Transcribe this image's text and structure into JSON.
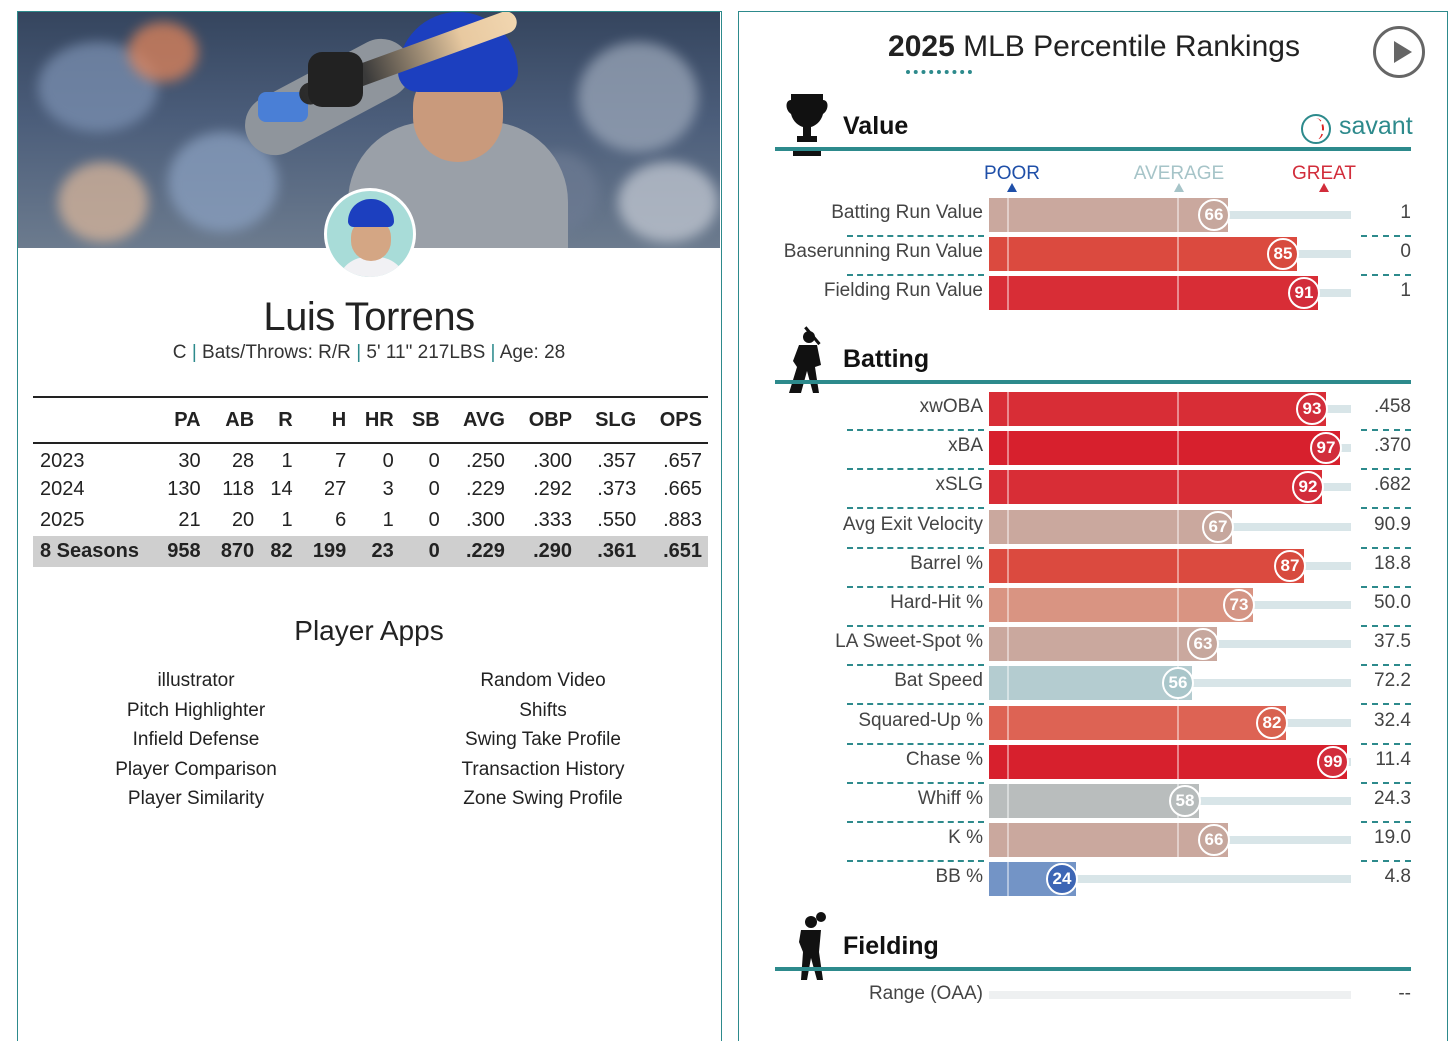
{
  "player": {
    "name": "Luis Torrens",
    "position": "C",
    "bats_throws": "Bats/Throws: R/R",
    "height_weight": "5' 11\" 217LBS",
    "age": "Age: 28",
    "separator": "|"
  },
  "stats": {
    "columns": [
      "",
      "PA",
      "AB",
      "R",
      "H",
      "HR",
      "SB",
      "AVG",
      "OBP",
      "SLG",
      "OPS"
    ],
    "rows": [
      [
        "2023",
        "30",
        "28",
        "1",
        "7",
        "0",
        "0",
        ".250",
        ".300",
        ".357",
        ".657"
      ],
      [
        "2024",
        "130",
        "118",
        "14",
        "27",
        "3",
        "0",
        ".229",
        ".292",
        ".373",
        ".665"
      ],
      [
        "2025",
        "21",
        "20",
        "1",
        "6",
        "1",
        "0",
        ".300",
        ".333",
        ".550",
        ".883"
      ],
      [
        "8 Seasons",
        "958",
        "870",
        "82",
        "199",
        "23",
        "0",
        ".229",
        ".290",
        ".361",
        ".651"
      ]
    ]
  },
  "apps": {
    "title": "Player Apps",
    "left": [
      "illustrator",
      "Pitch Highlighter",
      "Infield Defense",
      "Player Comparison",
      "Player Similarity"
    ],
    "right": [
      "Random Video",
      "Shifts",
      "Swing Take Profile",
      "Transaction History",
      "Zone Swing Profile"
    ]
  },
  "percentiles": {
    "title_year": "2025",
    "title_rest": "MLB Percentile Rankings",
    "brand": "savant",
    "legend": {
      "poor": "POOR",
      "average": "AVERAGE",
      "great": "GREAT"
    },
    "colors": {
      "accent": "#2d8a8c",
      "poor": "#1f4fa8",
      "average": "#a6c4c8",
      "great": "#d22d3b"
    },
    "sections": [
      {
        "title": "Value",
        "icon": "trophy-icon",
        "metrics": [
          {
            "label": "Batting Run Value",
            "percentile": 66,
            "value": "1"
          },
          {
            "label": "Baserunning Run Value",
            "percentile": 85,
            "value": "0"
          },
          {
            "label": "Fielding Run Value",
            "percentile": 91,
            "value": "1"
          }
        ]
      },
      {
        "title": "Batting",
        "icon": "batter-silhouette-icon",
        "metrics": [
          {
            "label": "xwOBA",
            "percentile": 93,
            "value": ".458"
          },
          {
            "label": "xBA",
            "percentile": 97,
            "value": ".370"
          },
          {
            "label": "xSLG",
            "percentile": 92,
            "value": ".682"
          },
          {
            "label": "Avg Exit Velocity",
            "percentile": 67,
            "value": "90.9"
          },
          {
            "label": "Barrel %",
            "percentile": 87,
            "value": "18.8"
          },
          {
            "label": "Hard-Hit %",
            "percentile": 73,
            "value": "50.0"
          },
          {
            "label": "LA Sweet-Spot %",
            "percentile": 63,
            "value": "37.5"
          },
          {
            "label": "Bat Speed",
            "percentile": 56,
            "value": "72.2"
          },
          {
            "label": "Squared-Up %",
            "percentile": 82,
            "value": "32.4"
          },
          {
            "label": "Chase %",
            "percentile": 99,
            "value": "11.4"
          },
          {
            "label": "Whiff %",
            "percentile": 58,
            "value": "24.3"
          },
          {
            "label": "K %",
            "percentile": 66,
            "value": "19.0"
          },
          {
            "label": "BB %",
            "percentile": 24,
            "value": "4.8"
          }
        ]
      },
      {
        "title": "Fielding",
        "icon": "fielder-silhouette-icon",
        "metrics": [
          {
            "label": "Range (OAA)",
            "percentile": null,
            "value": "--"
          }
        ]
      }
    ]
  }
}
